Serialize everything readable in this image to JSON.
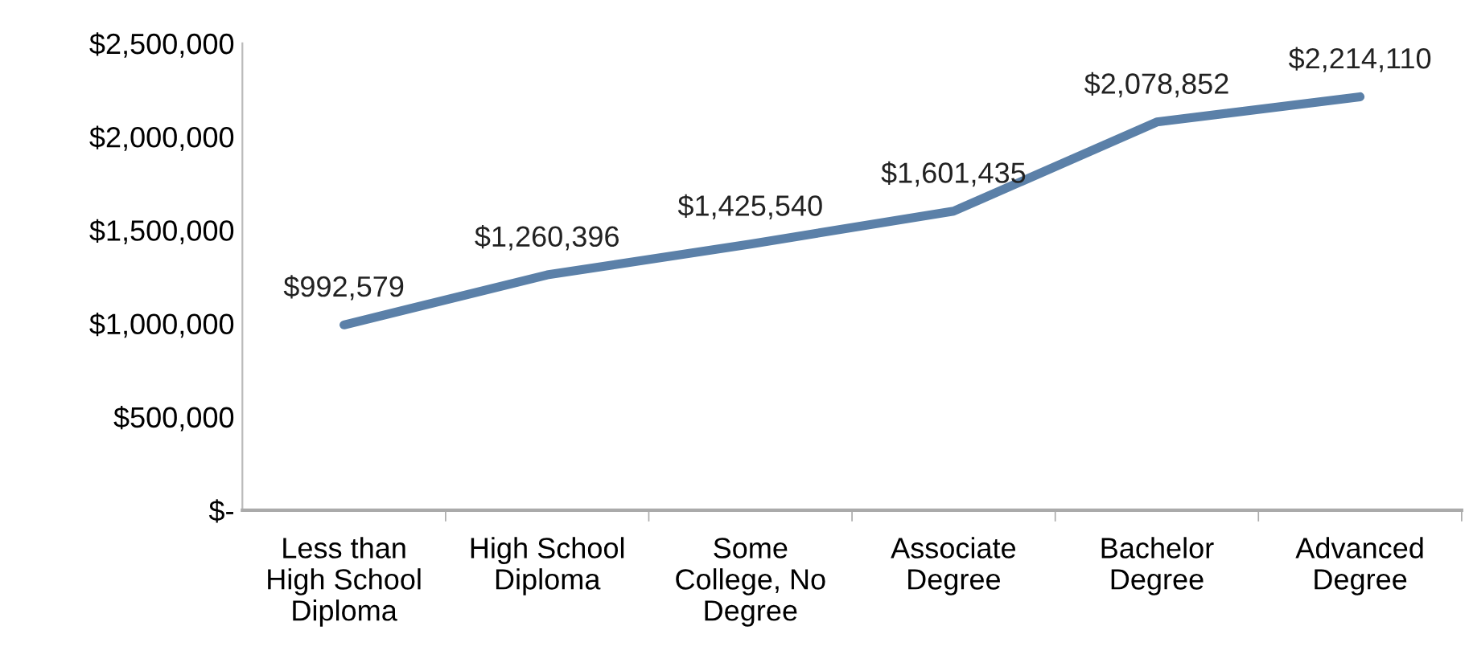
{
  "chart_data": {
    "type": "line",
    "categories": [
      "Less than\nHigh School\nDiploma",
      "High School\nDiploma",
      "Some\nCollege, No\nDegree",
      "Associate\nDegree",
      "Bachelor\nDegree",
      "Advanced\nDegree"
    ],
    "series": [
      {
        "color": "#5b80a8",
        "values": [
          992579,
          1260396,
          1425540,
          1601435,
          2078852,
          2214110
        ],
        "value_labels": [
          "$992,579",
          "$1,260,396",
          "$1,425,540",
          "$1,601,435",
          "$2,078,852",
          "$2,214,110"
        ]
      }
    ],
    "ylim": [
      0,
      2500000
    ],
    "yticks": [
      {
        "value": 0,
        "label": "$-"
      },
      {
        "value": 500000,
        "label": "$500,000"
      },
      {
        "value": 1000000,
        "label": "$1,000,000"
      },
      {
        "value": 1500000,
        "label": "$1,500,000"
      },
      {
        "value": 2000000,
        "label": "$2,000,000"
      },
      {
        "value": 2500000,
        "label": "$2,500,000"
      }
    ],
    "grid": false,
    "legend": false,
    "marker": "none",
    "line_style": "solid"
  }
}
